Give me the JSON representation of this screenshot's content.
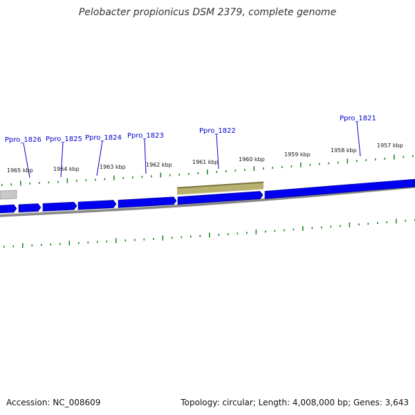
{
  "title": "Pelobacter propionicus DSM 2379, complete genome",
  "footer": {
    "accession": "Accession: NC_008609",
    "summary": "Topology: circular; Length: 4,008,000 bp; Genes: 3,643"
  },
  "colors": {
    "gene_forward": "#0000ee",
    "gene_highlight": "#b8b070",
    "tick": "#228822",
    "backbone": "#888888",
    "label": "#0000cc"
  },
  "kbp_labels": [
    "1965 kbp",
    "1964 kbp",
    "1963 kbp",
    "1962 kbp",
    "1961 kbp",
    "1960 kbp",
    "1959 kbp",
    "1958 kbp",
    "1957 kbp"
  ],
  "genes": [
    {
      "name": "Ppro_1826"
    },
    {
      "name": "Ppro_1825"
    },
    {
      "name": "Ppro_1824"
    },
    {
      "name": "Ppro_1823"
    },
    {
      "name": "Ppro_1822"
    },
    {
      "name": "Ppro_1821"
    }
  ]
}
